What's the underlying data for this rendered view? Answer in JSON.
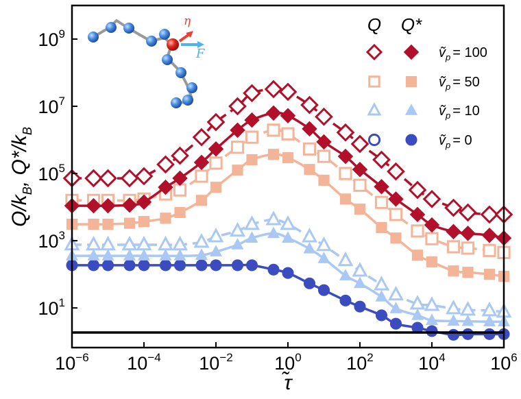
{
  "chart_data": {
    "type": "line",
    "xscale": "log",
    "yscale": "log",
    "xlabel": "τ̃",
    "ylabel": "Q/k_B, Q*/k_B",
    "ylabel_parts": {
      "q": "Q/k",
      "b1": "B",
      "sep": ", Q*/k",
      "b2": "B"
    },
    "xlim_log10": [
      -6,
      6
    ],
    "ylim_log10": [
      -0.18,
      10
    ],
    "x_ticks": [
      {
        "base": "10",
        "exp": "−6"
      },
      {
        "base": "10",
        "exp": "−4"
      },
      {
        "base": "10",
        "exp": "−2"
      },
      {
        "base": "10",
        "exp": "0"
      },
      {
        "base": "10",
        "exp": "2"
      },
      {
        "base": "10",
        "exp": "4"
      },
      {
        "base": "10",
        "exp": "6"
      }
    ],
    "x_tick_log10": [
      -6,
      -4,
      -2,
      0,
      2,
      4,
      6
    ],
    "y_ticks": [
      {
        "base": "10",
        "exp": "1"
      },
      {
        "base": "10",
        "exp": "3"
      },
      {
        "base": "10",
        "exp": "5"
      },
      {
        "base": "10",
        "exp": "7"
      },
      {
        "base": "10",
        "exp": "9"
      }
    ],
    "y_tick_log10": [
      1,
      3,
      5,
      7,
      9
    ],
    "grid": false,
    "x_log10": [
      -6,
      -5.4,
      -5,
      -4.4,
      -4,
      -3.4,
      -3,
      -2.4,
      -2,
      -1.4,
      -1,
      -0.4,
      0,
      0.6,
      1,
      1.6,
      2,
      2.6,
      3,
      3.6,
      4,
      4.6,
      5,
      5.6,
      6
    ],
    "series": [
      {
        "name": "Q, ṽp = 100",
        "quantity": "Q",
        "vp": "100",
        "color": "#b2102a",
        "marker": "diamond",
        "filled": false,
        "dashed": true,
        "values_log10": [
          4.86,
          4.86,
          4.86,
          4.86,
          4.92,
          5.27,
          5.53,
          6.08,
          6.53,
          7.0,
          7.39,
          7.51,
          7.43,
          7.04,
          6.69,
          6.22,
          5.88,
          5.41,
          5.06,
          4.51,
          4.24,
          3.98,
          3.84,
          3.78,
          3.78
        ]
      },
      {
        "name": "Q*, ṽp = 100",
        "quantity": "Q*",
        "vp": "100",
        "color": "#b2102a",
        "marker": "diamond",
        "filled": true,
        "dashed": false,
        "values_log10": [
          4.04,
          4.04,
          4.04,
          4.06,
          4.15,
          4.59,
          4.86,
          5.33,
          5.73,
          6.29,
          6.59,
          6.8,
          6.72,
          6.33,
          5.94,
          5.51,
          5.12,
          4.61,
          4.24,
          3.78,
          3.47,
          3.27,
          3.22,
          3.16,
          3.08
        ]
      },
      {
        "name": "Q, ṽp = 50",
        "quantity": "Q",
        "vp": "50",
        "color": "#f4b498",
        "marker": "square",
        "filled": false,
        "dashed": true,
        "values_log10": [
          4.2,
          4.2,
          4.2,
          4.2,
          4.24,
          4.39,
          4.51,
          4.92,
          5.31,
          5.78,
          6.08,
          6.29,
          6.18,
          5.73,
          5.51,
          5.0,
          4.65,
          4.14,
          3.78,
          3.29,
          3.06,
          2.82,
          2.78,
          2.71,
          2.65
        ]
      },
      {
        "name": "Q*, ṽp = 50",
        "quantity": "Q*",
        "vp": "50",
        "color": "#f4b498",
        "marker": "square",
        "filled": true,
        "dashed": false,
        "values_log10": [
          3.49,
          3.49,
          3.49,
          3.52,
          3.57,
          3.67,
          3.84,
          4.2,
          4.59,
          5.1,
          5.41,
          5.57,
          5.47,
          5.12,
          4.8,
          4.24,
          3.94,
          3.39,
          3.08,
          2.57,
          2.37,
          2.1,
          2.06,
          2.0,
          1.94
        ]
      },
      {
        "name": "Q, ṽp = 10",
        "quantity": "Q",
        "vp": "10",
        "color": "#a9c8f4",
        "marker": "triangle",
        "filled": false,
        "dashed": true,
        "values_log10": [
          2.88,
          2.88,
          2.88,
          2.88,
          2.88,
          2.88,
          2.88,
          2.96,
          3.12,
          3.29,
          3.49,
          3.63,
          3.49,
          3.12,
          2.86,
          2.41,
          2.1,
          1.69,
          1.39,
          1.12,
          1.08,
          0.98,
          0.94,
          0.92,
          0.88
        ]
      },
      {
        "name": "Q*, ṽp = 10",
        "quantity": "Q*",
        "vp": "10",
        "color": "#a9c8f4",
        "marker": "triangle",
        "filled": true,
        "dashed": false,
        "values_log10": [
          2.55,
          2.55,
          2.55,
          2.55,
          2.55,
          2.55,
          2.55,
          2.57,
          2.67,
          2.88,
          3.08,
          3.22,
          3.08,
          2.76,
          2.47,
          1.96,
          1.73,
          1.33,
          0.98,
          0.78,
          0.63,
          0.61,
          0.6,
          0.59,
          0.59
        ]
      },
      {
        "name": "Q*, ṽp = 0",
        "quantity": "Q*",
        "vp": "0",
        "color": "#3a4cc0",
        "marker": "circle",
        "filled": true,
        "dashed": false,
        "values_log10": [
          2.27,
          2.27,
          2.27,
          2.27,
          2.27,
          2.27,
          2.27,
          2.27,
          2.27,
          2.27,
          2.27,
          2.14,
          2.04,
          1.73,
          1.53,
          1.22,
          1.04,
          0.78,
          0.53,
          0.41,
          0.31,
          0.2,
          0.22,
          0.22,
          0.22
        ]
      }
    ],
    "reference_line_log10": 0.27,
    "legend": {
      "placement": "top-right",
      "headers": [
        "Q",
        "Q*"
      ],
      "rows": [
        {
          "sym": "ṽ",
          "sub": "p",
          "eq": "= 100",
          "color": "#b2102a",
          "marker": "diamond"
        },
        {
          "sym": "ṽ",
          "sub": "p",
          "eq": "= 50",
          "color": "#f4b498",
          "marker": "square"
        },
        {
          "sym": "ṽ",
          "sub": "p",
          "eq": "= 10",
          "color": "#a9c8f4",
          "marker": "triangle"
        },
        {
          "sym": "ṽ",
          "sub": "p",
          "eq": "= 0",
          "color": "#3a4cc0",
          "marker": "circle"
        }
      ]
    },
    "inset": {
      "eta_label": "η",
      "force_label": "F",
      "eta_color": "#e8403a",
      "force_color": "#4fb3ea"
    }
  }
}
